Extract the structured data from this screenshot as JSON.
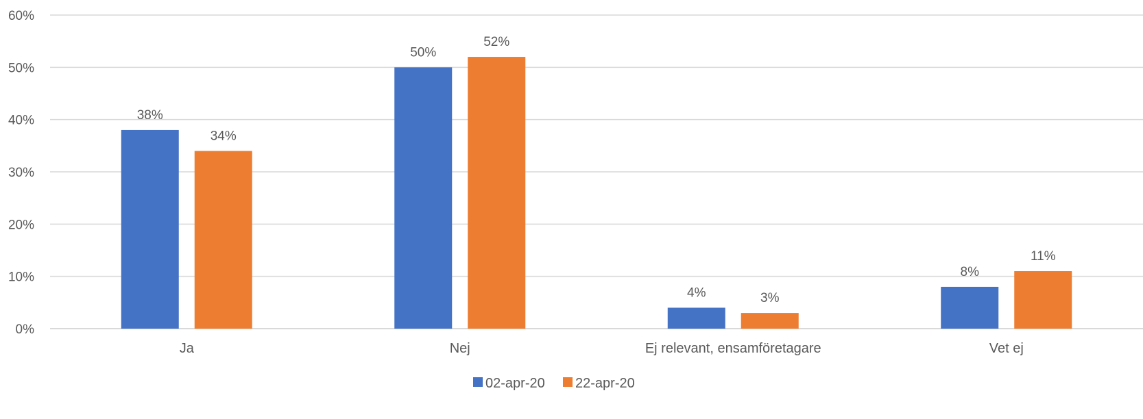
{
  "chart_data": {
    "type": "bar",
    "categories": [
      "Ja",
      "Nej",
      "Ej relevant, ensamföretagare",
      "Vet ej"
    ],
    "series": [
      {
        "name": "02-apr-20",
        "color": "#4472C4",
        "values": [
          38,
          50,
          4,
          8
        ],
        "labels": [
          "38%",
          "50%",
          "4%",
          "8%"
        ]
      },
      {
        "name": "22-apr-20",
        "color": "#ED7D31",
        "values": [
          34,
          52,
          3,
          11
        ],
        "labels": [
          "34%",
          "52%",
          "3%",
          "11%"
        ]
      }
    ],
    "y_ticks": [
      0,
      10,
      20,
      30,
      40,
      50,
      60
    ],
    "y_tick_labels": [
      "0%",
      "10%",
      "20%",
      "30%",
      "40%",
      "50%",
      "60%"
    ],
    "ylim": [
      0,
      60
    ],
    "grid": true,
    "legend_position": "bottom"
  }
}
